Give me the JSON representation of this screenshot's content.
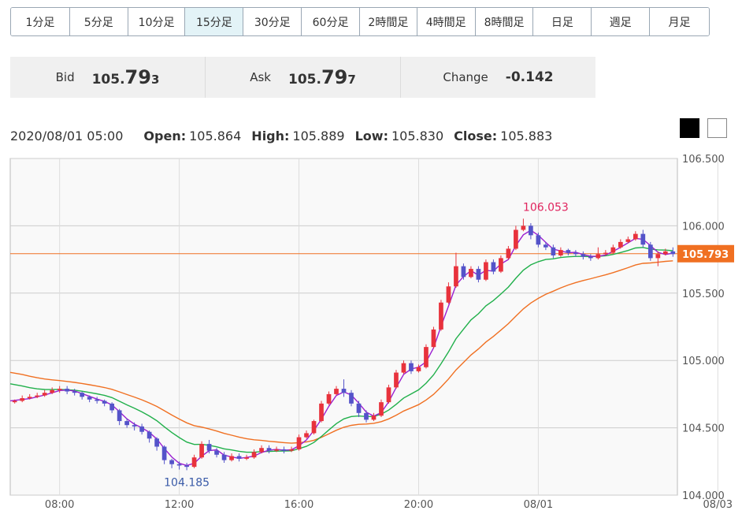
{
  "timeframes": [
    {
      "label": "1分足",
      "active": false
    },
    {
      "label": "5分足",
      "active": false
    },
    {
      "label": "10分足",
      "active": false
    },
    {
      "label": "15分足",
      "active": true
    },
    {
      "label": "30分足",
      "active": false
    },
    {
      "label": "60分足",
      "active": false
    },
    {
      "label": "2時間足",
      "active": false
    },
    {
      "label": "4時間足",
      "active": false
    },
    {
      "label": "8時間足",
      "active": false
    },
    {
      "label": "日足",
      "active": false
    },
    {
      "label": "週足",
      "active": false
    },
    {
      "label": "月足",
      "active": false
    }
  ],
  "quote": {
    "bid_label": "Bid",
    "bid_main": "105.",
    "bid_big": "79",
    "bid_small": "3",
    "ask_label": "Ask",
    "ask_main": "105.",
    "ask_big": "79",
    "ask_small": "7",
    "change_label": "Change",
    "change_value": "-0.142"
  },
  "ohlc": {
    "datetime": "2020/08/01 05:00",
    "open_label": "Open:",
    "open": "105.864",
    "high_label": "High:",
    "high": "105.889",
    "low_label": "Low:",
    "low": "105.830",
    "close_label": "Close:",
    "close": "105.883"
  },
  "theme": {
    "dark_color": "#000000",
    "light_color": "#ffffff"
  },
  "chart_data": {
    "type": "candlestick",
    "ylim": [
      104.0,
      106.5
    ],
    "yticks": [
      "106.500",
      "106.000",
      "105.500",
      "105.000",
      "104.500",
      "104.000"
    ],
    "xticks": [
      {
        "label": "08:00",
        "index": 6
      },
      {
        "label": "12:00",
        "index": 22
      },
      {
        "label": "16:00",
        "index": 38
      },
      {
        "label": "20:00",
        "index": 54
      },
      {
        "label": "08/01",
        "index": 70
      },
      {
        "label": "08/03",
        "index": 94
      }
    ],
    "current_price": 105.793,
    "current_price_label": "105.793",
    "annotations": [
      {
        "label": "106.053",
        "index": 71,
        "value": 106.053,
        "position": "above",
        "color": "#e0245e"
      },
      {
        "label": "104.185",
        "index": 23,
        "value": 104.185,
        "position": "below",
        "color": "#3a5ba8"
      }
    ],
    "colors": {
      "up": "#e8323c",
      "down": "#5453c9",
      "ma_short": "#9b1fd1",
      "ma_mid": "#21b04b",
      "ma_long": "#f07022",
      "price_line": "#f07022",
      "price_label_bg": "#f07022",
      "grid": "#cccccc",
      "plot_bg": "#f9f9f9"
    },
    "candles": [
      [
        104.69,
        104.7,
        104.68,
        104.71
      ],
      [
        104.7,
        104.72,
        104.69,
        104.74
      ],
      [
        104.72,
        104.73,
        104.71,
        104.75
      ],
      [
        104.73,
        104.74,
        104.72,
        104.76
      ],
      [
        104.74,
        104.76,
        104.73,
        104.78
      ],
      [
        104.76,
        104.78,
        104.75,
        104.8
      ],
      [
        104.78,
        104.79,
        104.76,
        104.81
      ],
      [
        104.79,
        104.77,
        104.75,
        104.81
      ],
      [
        104.77,
        104.76,
        104.74,
        104.79
      ],
      [
        104.76,
        104.73,
        104.71,
        104.77
      ],
      [
        104.73,
        104.71,
        104.69,
        104.74
      ],
      [
        104.71,
        104.7,
        104.68,
        104.73
      ],
      [
        104.7,
        104.68,
        104.66,
        104.71
      ],
      [
        104.68,
        104.63,
        104.61,
        104.69
      ],
      [
        104.63,
        104.55,
        104.52,
        104.64
      ],
      [
        104.55,
        104.52,
        104.5,
        104.57
      ],
      [
        104.52,
        104.51,
        104.48,
        104.54
      ],
      [
        104.51,
        104.47,
        104.45,
        104.53
      ],
      [
        104.47,
        104.42,
        104.39,
        104.48
      ],
      [
        104.42,
        104.36,
        104.33,
        104.43
      ],
      [
        104.36,
        104.26,
        104.23,
        104.37
      ],
      [
        104.26,
        104.23,
        104.2,
        104.27
      ],
      [
        104.23,
        104.22,
        104.19,
        104.25
      ],
      [
        104.22,
        104.21,
        104.185,
        104.24
      ],
      [
        104.21,
        104.28,
        104.2,
        104.3
      ],
      [
        104.28,
        104.38,
        104.27,
        104.4
      ],
      [
        104.38,
        104.33,
        104.31,
        104.41
      ],
      [
        104.33,
        104.3,
        104.28,
        104.35
      ],
      [
        104.3,
        104.26,
        104.24,
        104.32
      ],
      [
        104.26,
        104.29,
        104.25,
        104.31
      ],
      [
        104.29,
        104.27,
        104.25,
        104.31
      ],
      [
        104.27,
        104.28,
        104.26,
        104.3
      ],
      [
        104.28,
        104.32,
        104.27,
        104.34
      ],
      [
        104.32,
        104.35,
        104.31,
        104.37
      ],
      [
        104.35,
        104.33,
        104.31,
        104.37
      ],
      [
        104.33,
        104.34,
        104.32,
        104.36
      ],
      [
        104.34,
        104.33,
        104.31,
        104.36
      ],
      [
        104.33,
        104.34,
        104.32,
        104.36
      ],
      [
        104.34,
        104.43,
        104.33,
        104.45
      ],
      [
        104.43,
        104.46,
        104.42,
        104.48
      ],
      [
        104.46,
        104.55,
        104.45,
        104.56
      ],
      [
        104.55,
        104.68,
        104.54,
        104.7
      ],
      [
        104.68,
        104.75,
        104.67,
        104.77
      ],
      [
        104.75,
        104.79,
        104.74,
        104.81
      ],
      [
        104.79,
        104.76,
        104.73,
        104.86
      ],
      [
        104.76,
        104.68,
        104.66,
        104.78
      ],
      [
        104.68,
        104.61,
        104.58,
        104.7
      ],
      [
        104.61,
        104.56,
        104.54,
        104.63
      ],
      [
        104.56,
        104.59,
        104.55,
        104.61
      ],
      [
        104.59,
        104.69,
        104.58,
        104.71
      ],
      [
        104.69,
        104.8,
        104.68,
        104.82
      ],
      [
        104.8,
        104.91,
        104.79,
        104.93
      ],
      [
        104.91,
        104.98,
        104.9,
        105.0
      ],
      [
        104.98,
        104.92,
        104.9,
        105.0
      ],
      [
        104.92,
        104.95,
        104.91,
        104.97
      ],
      [
        104.95,
        105.1,
        104.94,
        105.12
      ],
      [
        105.1,
        105.23,
        105.09,
        105.25
      ],
      [
        105.23,
        105.43,
        105.22,
        105.45
      ],
      [
        105.43,
        105.55,
        105.42,
        105.58
      ],
      [
        105.55,
        105.7,
        105.54,
        105.8
      ],
      [
        105.7,
        105.62,
        105.6,
        105.72
      ],
      [
        105.62,
        105.68,
        105.61,
        105.7
      ],
      [
        105.68,
        105.6,
        105.58,
        105.7
      ],
      [
        105.6,
        105.73,
        105.59,
        105.75
      ],
      [
        105.73,
        105.66,
        105.64,
        105.75
      ],
      [
        105.66,
        105.76,
        105.65,
        105.78
      ],
      [
        105.76,
        105.83,
        105.75,
        105.85
      ],
      [
        105.83,
        105.97,
        105.82,
        106.0
      ],
      [
        105.97,
        106.0,
        105.96,
        106.053
      ],
      [
        106.0,
        105.93,
        105.9,
        106.02
      ],
      [
        105.93,
        105.86,
        105.84,
        105.95
      ],
      [
        105.86,
        105.84,
        105.82,
        105.88
      ],
      [
        105.84,
        105.78,
        105.76,
        105.86
      ],
      [
        105.78,
        105.82,
        105.77,
        105.84
      ],
      [
        105.82,
        105.8,
        105.78,
        105.83
      ],
      [
        105.8,
        105.79,
        105.77,
        105.82
      ],
      [
        105.79,
        105.77,
        105.75,
        105.81
      ],
      [
        105.77,
        105.76,
        105.74,
        105.79
      ],
      [
        105.76,
        105.79,
        105.75,
        105.84
      ],
      [
        105.79,
        105.8,
        105.78,
        105.82
      ],
      [
        105.8,
        105.84,
        105.79,
        105.86
      ],
      [
        105.84,
        105.88,
        105.83,
        105.9
      ],
      [
        105.88,
        105.9,
        105.87,
        105.92
      ],
      [
        105.9,
        105.94,
        105.89,
        105.96
      ],
      [
        105.94,
        105.86,
        105.84,
        105.97
      ],
      [
        105.86,
        105.76,
        105.74,
        105.88
      ],
      [
        105.76,
        105.79,
        105.7,
        105.81
      ],
      [
        105.79,
        105.81,
        105.78,
        105.83
      ],
      [
        105.81,
        105.79,
        105.77,
        105.84
      ]
    ]
  }
}
